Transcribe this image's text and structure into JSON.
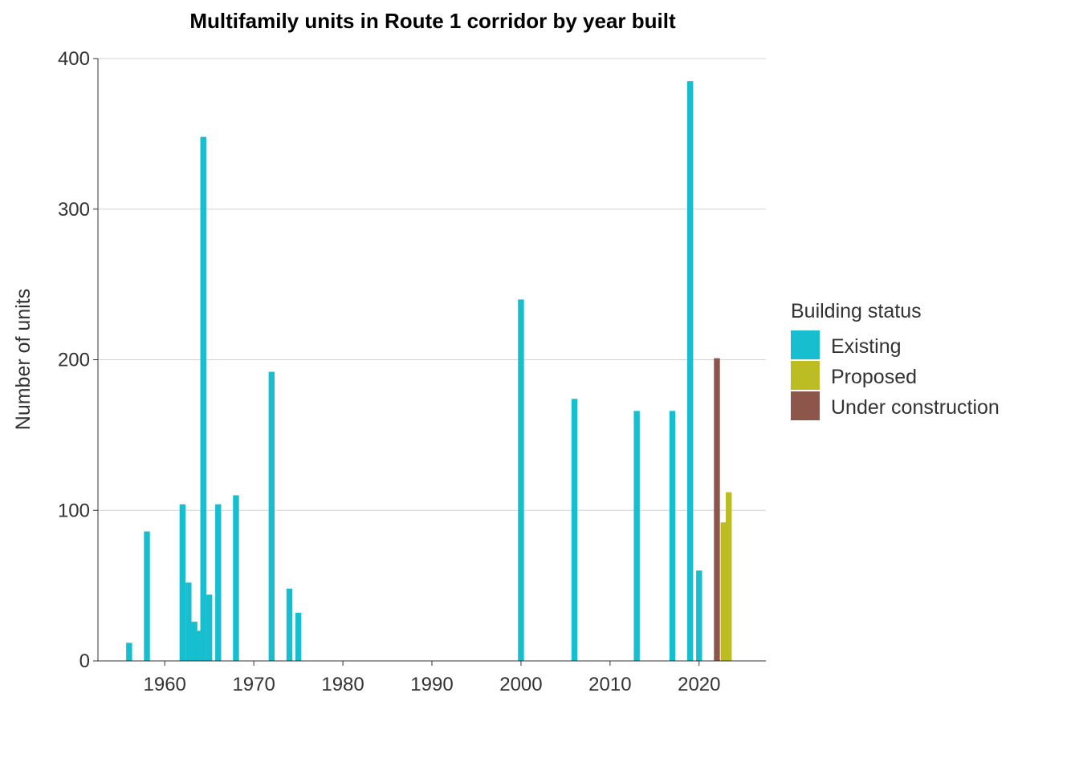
{
  "chart_data": {
    "type": "bar",
    "title": "Multifamily units in Route 1 corridor by year built",
    "xlabel": "",
    "ylabel": "Number of units",
    "xlim": [
      1952.5,
      2027.5
    ],
    "ylim": [
      0,
      400
    ],
    "x_ticks": [
      1960,
      1970,
      1980,
      1990,
      2000,
      2010,
      2020
    ],
    "y_ticks": [
      0,
      100,
      200,
      300,
      400
    ],
    "grid": "horizontal major",
    "legend": {
      "title": "Building status",
      "placement": "right",
      "items": [
        {
          "name": "Existing",
          "color": "#17becf"
        },
        {
          "name": "Proposed",
          "color": "#bcbd22"
        },
        {
          "name": "Under construction",
          "color": "#8c564b"
        }
      ]
    },
    "series": [
      {
        "name": "Existing",
        "color": "#17becf",
        "points": [
          {
            "x": 1956,
            "y": 12
          },
          {
            "x": 1958,
            "y": 86
          },
          {
            "x": 1962,
            "y": 104
          },
          {
            "x": 1962.67,
            "y": 52
          },
          {
            "x": 1963.33,
            "y": 26
          },
          {
            "x": 1963.67,
            "y": 20
          },
          {
            "x": 1964.33,
            "y": 348
          },
          {
            "x": 1965,
            "y": 44
          },
          {
            "x": 1966,
            "y": 104
          },
          {
            "x": 1968,
            "y": 110
          },
          {
            "x": 1972,
            "y": 192
          },
          {
            "x": 1974,
            "y": 48
          },
          {
            "x": 1975,
            "y": 32
          },
          {
            "x": 2000,
            "y": 240
          },
          {
            "x": 2006,
            "y": 174
          },
          {
            "x": 2013,
            "y": 166
          },
          {
            "x": 2017,
            "y": 166
          },
          {
            "x": 2019,
            "y": 385
          },
          {
            "x": 2020,
            "y": 60
          }
        ]
      },
      {
        "name": "Under construction",
        "color": "#8c564b",
        "points": [
          {
            "x": 2022,
            "y": 201
          }
        ]
      },
      {
        "name": "Proposed",
        "color": "#bcbd22",
        "points": [
          {
            "x": 2022.75,
            "y": 92
          },
          {
            "x": 2023.33,
            "y": 112
          }
        ]
      }
    ]
  }
}
